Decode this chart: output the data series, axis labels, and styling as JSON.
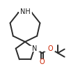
{
  "bg_color": "#ffffff",
  "bond_color": "#2a2a2a",
  "lw": 1.4,
  "figsize": [
    1.02,
    1.02
  ],
  "dpi": 100,
  "xlim": [
    0,
    102
  ],
  "ylim": [
    0,
    102
  ]
}
